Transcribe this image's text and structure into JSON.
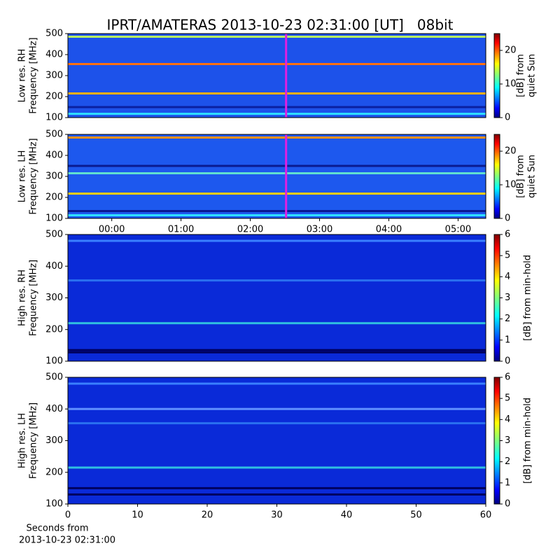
{
  "title": "IPRT/AMATERAS 2013-10-23 02:31:00 [UT]   08bit",
  "xlabel": [
    "Seconds from",
    "2013-10-23 02:31:00"
  ],
  "chart_data": [
    {
      "type": "spectrogram",
      "ylabel": [
        "Low res. RH",
        "Frequency [MHz]"
      ],
      "xlim": [
        -0.633,
        5.4
      ],
      "ylim": [
        100,
        500
      ],
      "yticks": [
        100,
        200,
        300,
        400,
        500
      ],
      "background": "#1d52ea",
      "bands": [
        {
          "freq": 485,
          "color": "#b8f060"
        },
        {
          "freq": 355,
          "color": "#ff7010"
        },
        {
          "freq": 215,
          "color": "#ffb000"
        },
        {
          "freq": 118,
          "color": "#30e0ff"
        },
        {
          "freq": 150,
          "color": "#0a20a0"
        }
      ],
      "marker": 2.517,
      "marker_color": "#e020e0",
      "clabel": [
        "[dB] from",
        "quiet Sun"
      ],
      "clim": [
        0,
        25
      ],
      "cticks": [
        0,
        10,
        20
      ]
    },
    {
      "type": "spectrogram",
      "ylabel": [
        "Low res. LH",
        "Frequency [MHz]"
      ],
      "xlim": [
        -0.633,
        5.4
      ],
      "ylim": [
        100,
        500
      ],
      "yticks": [
        100,
        200,
        300,
        400,
        500
      ],
      "xticks": [
        {
          "value": 0,
          "label": "00:00"
        },
        {
          "value": 1,
          "label": "01:00"
        },
        {
          "value": 2,
          "label": "02:00"
        },
        {
          "value": 3,
          "label": "03:00"
        },
        {
          "value": 4,
          "label": "04:00"
        },
        {
          "value": 5,
          "label": "05:00"
        }
      ],
      "background": "#1d58ee",
      "bands": [
        {
          "freq": 485,
          "color": "#ff9000"
        },
        {
          "freq": 350,
          "color": "#0a1a90"
        },
        {
          "freq": 315,
          "color": "#60e0d0"
        },
        {
          "freq": 218,
          "color": "#ffd000"
        },
        {
          "freq": 135,
          "color": "#0a1a90"
        },
        {
          "freq": 115,
          "color": "#30e0ff"
        }
      ],
      "marker": 2.517,
      "marker_color": "#e020e0",
      "clabel": [
        "[dB] from",
        "quiet Sun"
      ],
      "clim": [
        0,
        25
      ],
      "cticks": [
        0,
        10,
        20
      ]
    },
    {
      "type": "spectrogram",
      "ylabel": [
        "High res. RH",
        "Frequency [MHz]"
      ],
      "xlim": [
        0,
        60
      ],
      "ylim": [
        100,
        500
      ],
      "yticks": [
        100,
        200,
        300,
        400,
        500
      ],
      "background": "#0a2ad8",
      "bands": [
        {
          "freq": 480,
          "color": "#3a80ff"
        },
        {
          "freq": 355,
          "color": "#2a70f0"
        },
        {
          "freq": 220,
          "color": "#30c0e0"
        },
        {
          "freq": 135,
          "color": "#000060"
        },
        {
          "freq": 128,
          "color": "#000060"
        }
      ],
      "clabel": [
        "[dB] from min-hold"
      ],
      "clim": [
        0,
        6
      ],
      "cticks": [
        0,
        1,
        2,
        3,
        4,
        5,
        6
      ]
    },
    {
      "type": "spectrogram",
      "ylabel": [
        "High res. LH",
        "Frequency [MHz]"
      ],
      "xlim": [
        0,
        60
      ],
      "ylim": [
        100,
        500
      ],
      "yticks": [
        100,
        200,
        300,
        400,
        500
      ],
      "xticks": [
        0,
        10,
        20,
        30,
        40,
        50,
        60
      ],
      "background": "#0a2ad8",
      "bands": [
        {
          "freq": 480,
          "color": "#3a80ff"
        },
        {
          "freq": 400,
          "color": "#6090ff"
        },
        {
          "freq": 355,
          "color": "#2a70f0"
        },
        {
          "freq": 215,
          "color": "#30c0e0"
        },
        {
          "freq": 150,
          "color": "#000060"
        },
        {
          "freq": 130,
          "color": "#000060"
        }
      ],
      "clabel": [
        "[dB] from min-hold"
      ],
      "clim": [
        0,
        6
      ],
      "cticks": [
        0,
        1,
        2,
        3,
        4,
        5,
        6
      ]
    }
  ]
}
